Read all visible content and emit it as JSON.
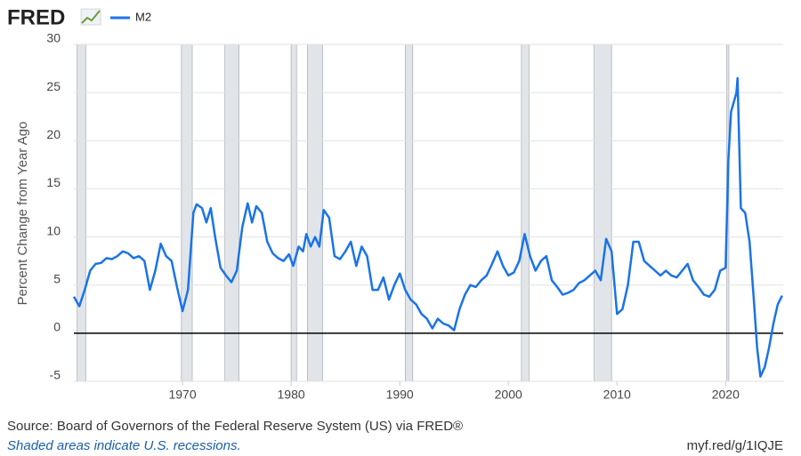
{
  "chart_data": {
    "type": "line",
    "logo": "FRED",
    "ylabel": "Percent Change from Year Ago",
    "source": "Source: Board of Governors of the Federal Reserve System (US) via FRED®",
    "note": "Shaded areas indicate U.S. recessions.",
    "url": "myf.red/g/1IQJE",
    "xlim": [
      1960,
      2025.3
    ],
    "ylim": [
      -5,
      30
    ],
    "xticks": [
      1970,
      1980,
      1990,
      2000,
      2010,
      2020
    ],
    "yticks": [
      -5,
      0,
      5,
      10,
      15,
      20,
      25,
      30
    ],
    "grid": true,
    "recessions": [
      [
        1960.3,
        1961.1
      ],
      [
        1969.9,
        1970.9
      ],
      [
        1973.9,
        1975.2
      ],
      [
        1980.0,
        1980.5
      ],
      [
        1981.5,
        1982.9
      ],
      [
        1990.5,
        1991.2
      ],
      [
        2001.2,
        2001.9
      ],
      [
        2007.9,
        2009.5
      ],
      [
        2020.1,
        2020.3
      ]
    ],
    "x": [
      1960.0,
      1960.5,
      1961,
      1961.5,
      1962,
      1962.5,
      1963,
      1963.5,
      1964,
      1964.5,
      1965,
      1965.5,
      1966,
      1966.5,
      1967,
      1967.5,
      1968,
      1968.5,
      1969,
      1969.5,
      1970,
      1970.5,
      1971,
      1971.3,
      1971.8,
      1972.2,
      1972.6,
      1973,
      1973.5,
      1974,
      1974.5,
      1975,
      1975.5,
      1976,
      1976.4,
      1976.8,
      1977.3,
      1977.8,
      1978.3,
      1978.8,
      1979.3,
      1979.8,
      1980.2,
      1980.7,
      1981.1,
      1981.4,
      1981.8,
      1982.2,
      1982.6,
      1983.0,
      1983.5,
      1984,
      1984.5,
      1985,
      1985.5,
      1986,
      1986.5,
      1987,
      1987.5,
      1988,
      1988.5,
      1989,
      1989.5,
      1990,
      1990.5,
      1991,
      1991.5,
      1992,
      1992.5,
      1993,
      1993.5,
      1994,
      1994.5,
      1995,
      1995.5,
      1996,
      1996.5,
      1997,
      1997.5,
      1998,
      1998.5,
      1999,
      1999.5,
      2000,
      2000.5,
      2001,
      2001.5,
      2002,
      2002.5,
      2003,
      2003.5,
      2004,
      2004.5,
      2005,
      2005.5,
      2006,
      2006.5,
      2007,
      2007.5,
      2008,
      2008.5,
      2009,
      2009.5,
      2010,
      2010.5,
      2011,
      2011.5,
      2012,
      2012.5,
      2013,
      2013.5,
      2014,
      2014.5,
      2015,
      2015.5,
      2016,
      2016.5,
      2017,
      2017.5,
      2018,
      2018.5,
      2019,
      2019.5,
      2020.0,
      2020.25,
      2020.5,
      2021.0,
      2021.1,
      2021.4,
      2021.8,
      2022.2,
      2022.6,
      2022.9,
      2023.2,
      2023.6,
      2024.0,
      2024.4,
      2024.8,
      2025.2
    ],
    "series": [
      {
        "name": "M2",
        "color": "#1a73e8",
        "values": [
          3.8,
          2.8,
          4.5,
          6.5,
          7.2,
          7.3,
          7.8,
          7.7,
          8.0,
          8.5,
          8.3,
          7.8,
          8.0,
          7.5,
          4.5,
          6.5,
          9.3,
          8.0,
          7.5,
          4.8,
          2.3,
          4.5,
          12.5,
          13.4,
          13.0,
          11.5,
          13.0,
          10.0,
          6.8,
          6.0,
          5.3,
          6.5,
          11.0,
          13.5,
          11.5,
          13.2,
          12.5,
          9.5,
          8.3,
          7.8,
          7.5,
          8.2,
          7.0,
          9.0,
          8.5,
          10.3,
          9.0,
          10.0,
          9.0,
          12.8,
          12.0,
          8.0,
          7.7,
          8.5,
          9.5,
          7.0,
          9.0,
          8.0,
          4.5,
          4.5,
          5.8,
          3.5,
          5.0,
          6.2,
          4.5,
          3.5,
          3.0,
          2.0,
          1.5,
          0.5,
          1.5,
          1.0,
          0.8,
          0.3,
          2.5,
          4.0,
          5.0,
          4.8,
          5.5,
          6.0,
          7.2,
          8.5,
          7.0,
          6.0,
          6.3,
          7.5,
          10.3,
          8.0,
          6.5,
          7.5,
          8.0,
          5.5,
          4.8,
          4.0,
          4.2,
          4.5,
          5.2,
          5.5,
          6.0,
          6.5,
          5.5,
          9.8,
          8.5,
          2.0,
          2.5,
          5.0,
          9.5,
          9.5,
          7.5,
          7.0,
          6.5,
          6.0,
          6.5,
          6.0,
          5.8,
          6.5,
          7.2,
          5.5,
          4.8,
          4.0,
          3.8,
          4.5,
          6.5,
          6.8,
          18,
          23,
          25,
          26.5,
          13,
          12.5,
          9.5,
          3.5,
          -1.5,
          -4.5,
          -3.5,
          -1.5,
          1.0,
          3.0,
          3.9
        ]
      }
    ]
  }
}
